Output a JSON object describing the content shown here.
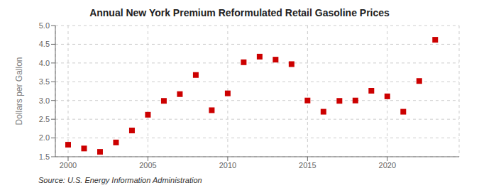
{
  "chart_data": {
    "type": "scatter",
    "title": "Annual New York Premium Reformulated Retail Gasoline Prices",
    "ylabel": "Dollars per Gallon",
    "annotations": [
      "Source: U.S. Energy Information Administration"
    ],
    "x": [
      2000,
      2001,
      2002,
      2003,
      2004,
      2005,
      2006,
      2007,
      2008,
      2009,
      2010,
      2011,
      2012,
      2013,
      2014,
      2015,
      2016,
      2017,
      2018,
      2019,
      2020,
      2021,
      2022,
      2023
    ],
    "values": [
      1.82,
      1.72,
      1.63,
      1.88,
      2.2,
      2.62,
      2.99,
      3.17,
      3.68,
      2.74,
      3.19,
      4.02,
      4.17,
      4.09,
      3.97,
      3.0,
      2.7,
      2.99,
      3.0,
      3.26,
      3.11,
      2.7,
      3.52,
      4.62
    ],
    "color": "#cc0000",
    "marker": "square",
    "xlim": [
      1999.2,
      2024.5
    ],
    "xticks": [
      2000,
      2005,
      2010,
      2015,
      2020
    ],
    "ylim": [
      1.5,
      5.0
    ],
    "yticks": [
      1.5,
      {
        "value": 2,
        "label": "2.0"
      },
      2.5,
      {
        "value": 3,
        "label": "3.0"
      },
      3.5,
      {
        "value": 4,
        "label": "4.0"
      },
      4.5,
      {
        "value": 5,
        "label": "5.0"
      }
    ],
    "grid": true
  }
}
